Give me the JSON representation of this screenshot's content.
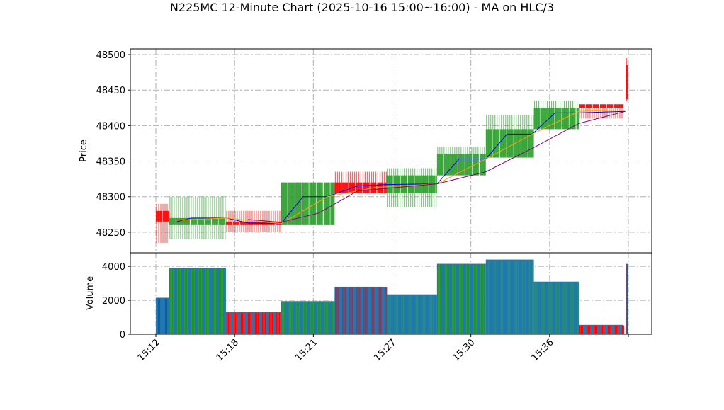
{
  "chart_data": [
    {
      "type": "candlestick",
      "title": "N225MC 12-Minute Chart (2025-10-16 15:00~16:00) - MA on HLC/3",
      "ylabel": "Price",
      "ylim": [
        48221,
        48508
      ],
      "yticks": [
        48250,
        48300,
        48350,
        48400,
        48450,
        48500
      ],
      "xlim": [
        -0.324,
        6.297
      ],
      "grid": true,
      "colors": {
        "up": "#2ca02c",
        "down": "#ff0000",
        "ma_short": "#0000ff",
        "ma_mid": "#ffa500",
        "ma_long": "#800080"
      },
      "blocks": [
        {
          "x0": 0.0,
          "x1": 0.17,
          "open": 48280,
          "high": 48290,
          "low": 48235,
          "close": 48265
        },
        {
          "x0": 0.17,
          "x1": 0.89,
          "open": 48260,
          "high": 48300,
          "low": 48240,
          "close": 48270
        },
        {
          "x0": 0.89,
          "x1": 1.59,
          "open": 48265,
          "high": 48280,
          "low": 48250,
          "close": 48260
        },
        {
          "x0": 1.59,
          "x1": 2.27,
          "open": 48260,
          "high": 48320,
          "low": 48260,
          "close": 48320
        },
        {
          "x0": 2.27,
          "x1": 2.93,
          "open": 48320,
          "high": 48335,
          "low": 48305,
          "close": 48305
        },
        {
          "x0": 2.93,
          "x1": 3.57,
          "open": 48305,
          "high": 48340,
          "low": 48285,
          "close": 48330
        },
        {
          "x0": 3.57,
          "x1": 4.19,
          "open": 48330,
          "high": 48370,
          "low": 48330,
          "close": 48360
        },
        {
          "x0": 4.19,
          "x1": 4.8,
          "open": 48355,
          "high": 48415,
          "low": 48355,
          "close": 48395
        },
        {
          "x0": 4.8,
          "x1": 5.37,
          "open": 48395,
          "high": 48435,
          "low": 48395,
          "close": 48425
        },
        {
          "x0": 5.37,
          "x1": 5.94,
          "open": 48430,
          "high": 48430,
          "low": 48410,
          "close": 48425
        },
        {
          "x0": 5.97,
          "x1": 5.995,
          "open": 48485,
          "high": 48495,
          "low": 48434,
          "close": 48437
        }
      ],
      "ma_short": [
        [
          0.27,
          48265
        ],
        [
          0.45,
          48270
        ],
        [
          0.9,
          48270
        ],
        [
          1.17,
          48263
        ],
        [
          1.59,
          48262
        ],
        [
          1.87,
          48300
        ],
        [
          2.18,
          48300
        ],
        [
          2.56,
          48315
        ],
        [
          2.93,
          48317
        ],
        [
          3.57,
          48318
        ],
        [
          3.85,
          48353
        ],
        [
          4.19,
          48353
        ],
        [
          4.46,
          48388
        ],
        [
          4.78,
          48388
        ],
        [
          5.07,
          48418
        ],
        [
          5.37,
          48418
        ],
        [
          5.96,
          48420
        ]
      ],
      "ma_mid": [
        [
          0.27,
          48267
        ],
        [
          0.9,
          48270
        ],
        [
          1.59,
          48262
        ],
        [
          2.18,
          48300
        ],
        [
          2.79,
          48313
        ],
        [
          3.57,
          48318
        ],
        [
          4.19,
          48353
        ],
        [
          4.78,
          48388
        ],
        [
          5.37,
          48420
        ],
        [
          5.96,
          48422
        ]
      ],
      "ma_long": [
        [
          1.17,
          48268
        ],
        [
          1.59,
          48264
        ],
        [
          2.07,
          48277
        ],
        [
          2.56,
          48308
        ],
        [
          3.57,
          48318
        ],
        [
          4.19,
          48335
        ],
        [
          4.78,
          48368
        ],
        [
          5.37,
          48403
        ],
        [
          5.96,
          48420
        ]
      ]
    },
    {
      "type": "bar",
      "ylabel": "Volume",
      "ylim": [
        0,
        4800
      ],
      "yticks": [
        0,
        2000,
        4000
      ],
      "xticks": [
        0,
        1,
        2,
        3,
        4,
        5,
        6
      ],
      "xtick_labels": [
        "15:12",
        "15:18",
        "15:21",
        "15:27",
        "15:30",
        "15:36",
        ""
      ],
      "colors": {
        "base": "#1f77b4"
      },
      "volumes": [
        {
          "x0": 0.0,
          "x1": 0.17,
          "value": 2150,
          "dir": "down"
        },
        {
          "x0": 0.17,
          "x1": 0.89,
          "value": 3900,
          "dir": "up"
        },
        {
          "x0": 0.89,
          "x1": 1.59,
          "value": 1300,
          "dir": "down"
        },
        {
          "x0": 1.59,
          "x1": 2.27,
          "value": 1950,
          "dir": "up"
        },
        {
          "x0": 2.27,
          "x1": 2.93,
          "value": 2800,
          "dir": "down"
        },
        {
          "x0": 2.93,
          "x1": 3.57,
          "value": 2350,
          "dir": "up"
        },
        {
          "x0": 3.57,
          "x1": 4.19,
          "value": 4150,
          "dir": "up"
        },
        {
          "x0": 4.19,
          "x1": 4.8,
          "value": 4400,
          "dir": "up"
        },
        {
          "x0": 4.8,
          "x1": 5.37,
          "value": 3100,
          "dir": "up"
        },
        {
          "x0": 5.37,
          "x1": 5.94,
          "value": 550,
          "dir": "down"
        },
        {
          "x0": 5.97,
          "x1": 5.995,
          "value": 4150,
          "dir": "down"
        }
      ]
    }
  ]
}
